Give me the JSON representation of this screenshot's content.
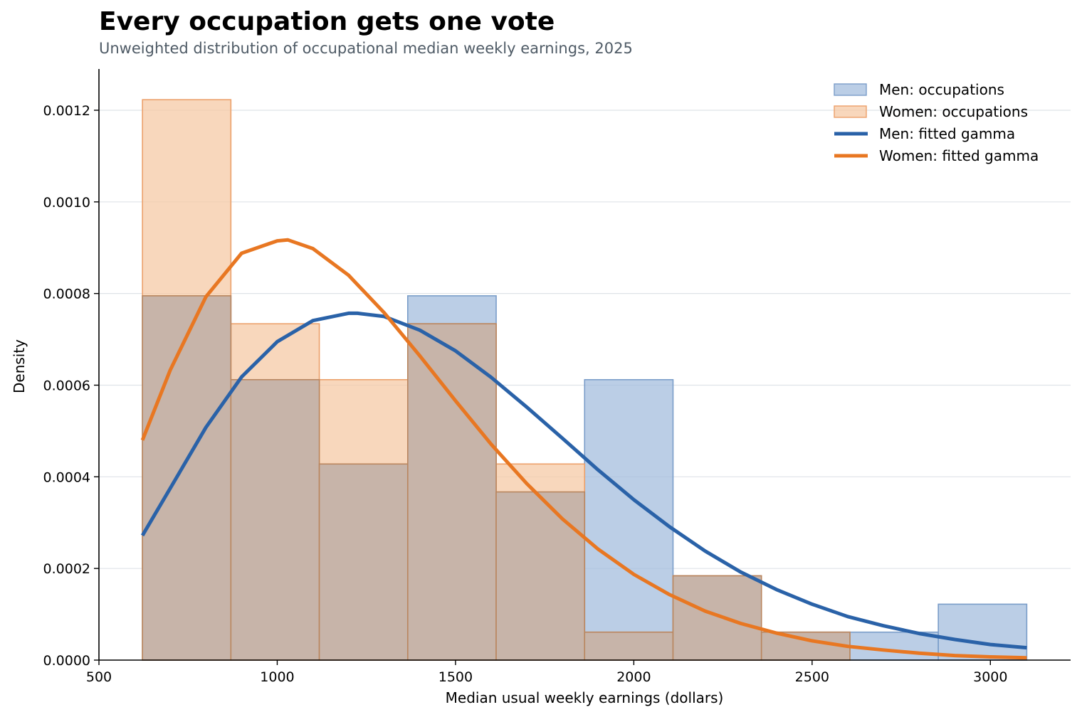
{
  "chart_data": {
    "type": "bar",
    "title": "Every occupation gets one vote",
    "subtitle": "Unweighted distribution of occupational median weekly earnings, 2025",
    "xlabel": "Median usual weekly earnings (dollars)",
    "ylabel": "Density",
    "xlim": [
      500,
      3225
    ],
    "ylim": [
      0,
      0.00129
    ],
    "x_ticks": [
      500,
      1000,
      1500,
      2000,
      2500,
      3000
    ],
    "y_ticks": [
      0,
      0.0002,
      0.0004,
      0.0006,
      0.0008,
      0.001,
      0.0012
    ],
    "y_tick_labels": [
      "0.0000",
      "0.0002",
      "0.0004",
      "0.0006",
      "0.0008",
      "0.0010",
      "0.0012"
    ],
    "grid": "horizontal",
    "legend_position": "top-right",
    "bin_edges": [
      622,
      870,
      1118,
      1366,
      1614,
      1862,
      2110,
      2358,
      2606,
      2854,
      3102
    ],
    "series": [
      {
        "name": "Men: occupations",
        "kind": "histogram",
        "color": "#a4bddd",
        "edge_color": "#7a9dc9",
        "values": [
          0.000795,
          0.000612,
          0.000428,
          0.000795,
          0.000367,
          0.000612,
          0.000184,
          6.1e-05,
          6.1e-05,
          0.000122
        ]
      },
      {
        "name": "Women: occupations",
        "kind": "histogram",
        "color": "#f6c9a6",
        "edge_color": "#eca06a",
        "values": [
          0.001223,
          0.000734,
          0.000612,
          0.000734,
          0.000428,
          6.1e-05,
          0.000184,
          6.1e-05,
          0,
          0
        ]
      },
      {
        "name": "Men: fitted gamma",
        "kind": "line",
        "color": "#2a62a8",
        "x": [
          622,
          700,
          800,
          900,
          1000,
          1100,
          1200,
          1225,
          1300,
          1400,
          1500,
          1600,
          1700,
          1800,
          1900,
          2000,
          2100,
          2200,
          2300,
          2400,
          2500,
          2600,
          2700,
          2800,
          2900,
          3000,
          3102
        ],
        "values": [
          0.000272,
          0.000375,
          0.000508,
          0.000618,
          0.000695,
          0.000741,
          0.000757,
          0.000757,
          0.00075,
          0.00072,
          0.000675,
          0.000617,
          0.000552,
          0.000484,
          0.000415,
          0.00035,
          0.000291,
          0.000238,
          0.000192,
          0.000154,
          0.000122,
          9.5e-05,
          7.5e-05,
          5.8e-05,
          4.5e-05,
          3.4e-05,
          2.7e-05
        ]
      },
      {
        "name": "Women: fitted gamma",
        "kind": "line",
        "color": "#e87722",
        "x": [
          622,
          700,
          800,
          900,
          1000,
          1030,
          1100,
          1200,
          1300,
          1400,
          1500,
          1600,
          1700,
          1800,
          1900,
          2000,
          2100,
          2200,
          2300,
          2400,
          2500,
          2600,
          2700,
          2800,
          2900,
          3000,
          3102
        ],
        "values": [
          0.00048,
          0.000633,
          0.000793,
          0.000888,
          0.000915,
          0.000917,
          0.000898,
          0.00084,
          0.000758,
          0.000664,
          0.000566,
          0.000471,
          0.000385,
          0.000308,
          0.000242,
          0.000187,
          0.000143,
          0.000107,
          8e-05,
          5.9e-05,
          4.2e-05,
          3e-05,
          2.2e-05,
          1.5e-05,
          1e-05,
          7e-06,
          5e-06
        ]
      }
    ]
  }
}
